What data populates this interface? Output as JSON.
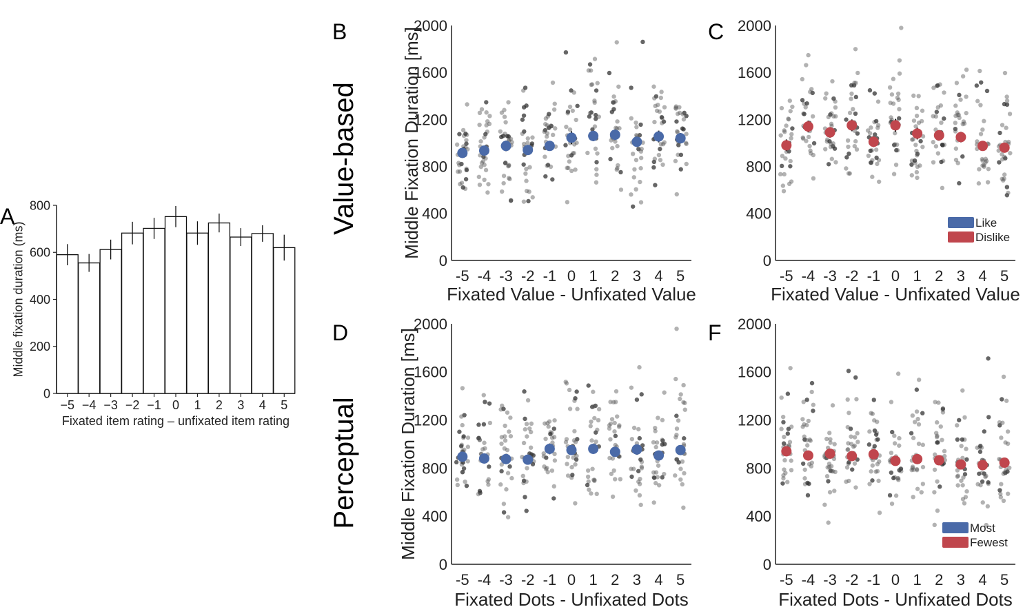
{
  "colors": {
    "like": "#4a6aa8",
    "dislike": "#c0464d",
    "dots": "#555555",
    "axis": "#222222"
  },
  "row_labels": {
    "top": "Value-based",
    "bottom": "Perceptual"
  },
  "chart_data": [
    {
      "id": "A",
      "panel_label": "A",
      "type": "bar",
      "categories": [
        "−5",
        "−4",
        "−3",
        "−2",
        "−1",
        "0",
        "1",
        "2",
        "3",
        "4",
        "5"
      ],
      "values": [
        590,
        555,
        612,
        682,
        702,
        752,
        682,
        725,
        665,
        680,
        620
      ],
      "errors": [
        45,
        38,
        42,
        48,
        45,
        45,
        50,
        40,
        38,
        35,
        55
      ],
      "xlabel": "Fixated item rating – unfixated item rating",
      "ylabel": "Middle fixation duration (ms)",
      "ylim": [
        0,
        800
      ],
      "yticks": [
        "0",
        "200",
        "400",
        "600",
        "800"
      ]
    },
    {
      "id": "B",
      "panel_label": "B",
      "type": "scatter",
      "categories": [
        "-5",
        "-4",
        "-3",
        "-2",
        "-1",
        "0",
        "1",
        "2",
        "3",
        "4",
        "5"
      ],
      "series": [
        {
          "name": "Like",
          "values": [
            915,
            935,
            975,
            940,
            975,
            1045,
            1060,
            1070,
            1010,
            1055,
            1040
          ],
          "errors": [
            40,
            40,
            45,
            40,
            40,
            55,
            45,
            45,
            45,
            50,
            45
          ]
        }
      ],
      "xlabel": "Fixated Value - Unfixated Value",
      "ylabel": "Middle Fixation Duration [ms]",
      "ylim": [
        0,
        2000
      ],
      "yticks": [
        "0",
        "400",
        "800",
        "1200",
        "1600",
        "2000"
      ]
    },
    {
      "id": "C",
      "panel_label": "C",
      "type": "scatter",
      "categories": [
        "-5",
        "-4",
        "-3",
        "-2",
        "-1",
        "0",
        "1",
        "2",
        "3",
        "4",
        "5"
      ],
      "series": [
        {
          "name": "Dislike",
          "values": [
            980,
            1140,
            1090,
            1150,
            1010,
            1150,
            1080,
            1065,
            1050,
            975,
            960
          ],
          "errors": [
            50,
            50,
            45,
            50,
            45,
            55,
            50,
            45,
            45,
            40,
            40
          ]
        }
      ],
      "legend": [
        {
          "label": "Like",
          "color": "#4a6aa8"
        },
        {
          "label": "Dislike",
          "color": "#c0464d"
        }
      ],
      "xlabel": "Fixated Value - Unfixated Value",
      "ylabel": "",
      "ylim": [
        0,
        2000
      ],
      "yticks": [
        "0",
        "400",
        "800",
        "1200",
        "1600",
        "2000"
      ]
    },
    {
      "id": "D",
      "panel_label": "D",
      "type": "scatter",
      "categories": [
        "-5",
        "-4",
        "-3",
        "-2",
        "-1",
        "0",
        "1",
        "2",
        "3",
        "4",
        "5"
      ],
      "series": [
        {
          "name": "Most",
          "values": [
            895,
            880,
            875,
            870,
            960,
            950,
            960,
            935,
            955,
            905,
            950
          ],
          "errors": [
            35,
            35,
            35,
            35,
            45,
            40,
            40,
            40,
            40,
            35,
            40
          ]
        }
      ],
      "xlabel": "Fixated Dots - Unfixated Dots",
      "ylabel": "Middle Fixation Duration [ms]",
      "ylim": [
        0,
        2000
      ],
      "yticks": [
        "0",
        "400",
        "800",
        "1200",
        "1600",
        "2000"
      ]
    },
    {
      "id": "F",
      "panel_label": "F",
      "type": "scatter",
      "categories": [
        "-5",
        "-4",
        "-3",
        "-2",
        "-1",
        "0",
        "1",
        "2",
        "3",
        "4",
        "5"
      ],
      "series": [
        {
          "name": "Fewest",
          "values": [
            940,
            905,
            920,
            900,
            915,
            860,
            875,
            865,
            830,
            825,
            845
          ],
          "errors": [
            35,
            35,
            40,
            35,
            35,
            35,
            35,
            35,
            35,
            30,
            35
          ]
        }
      ],
      "legend": [
        {
          "label": "Most",
          "color": "#4a6aa8"
        },
        {
          "label": "Fewest",
          "color": "#c0464d"
        }
      ],
      "xlabel": "Fixated Dots - Unfixated Dots",
      "ylabel": "",
      "ylim": [
        0,
        2000
      ],
      "yticks": [
        "0",
        "400",
        "800",
        "1200",
        "1600",
        "2000"
      ]
    }
  ]
}
